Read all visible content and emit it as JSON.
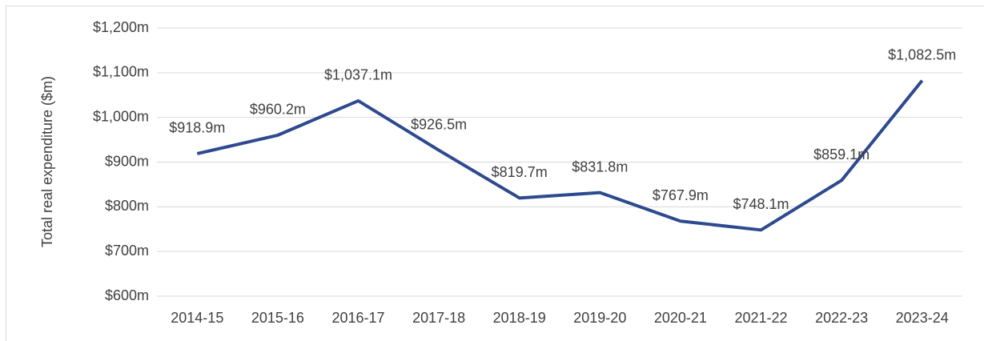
{
  "chart_data": {
    "type": "line",
    "y_label": "Total real expenditure ($m)",
    "categories": [
      "2014-15",
      "2015-16",
      "2016-17",
      "2017-18",
      "2018-19",
      "2019-20",
      "2020-21",
      "2021-22",
      "2022-23",
      "2023-24"
    ],
    "series": [
      {
        "color": "#2e4a8f",
        "values": [
          918.9,
          960.2,
          1037.1,
          926.5,
          819.7,
          831.8,
          767.9,
          748.1,
          859.1,
          1082.5
        ],
        "value_labels": [
          "$918.9m",
          "$960.2m",
          "$1,037.1m",
          "$926.5m",
          "$819.7m",
          "$831.8m",
          "$767.9m",
          "$748.1m",
          "$859.1m",
          "$1,082.5m"
        ]
      }
    ],
    "ylim": [
      600,
      1200
    ],
    "yticks": [
      {
        "value": 600,
        "label": "$600m"
      },
      {
        "value": 700,
        "label": "$700m"
      },
      {
        "value": 800,
        "label": "$800m"
      },
      {
        "value": 900,
        "label": "$900m"
      },
      {
        "value": 1000,
        "label": "$1,000m"
      },
      {
        "value": 1100,
        "label": "$1,100m"
      },
      {
        "value": 1200,
        "label": "$1,200m"
      }
    ],
    "grid": true
  }
}
